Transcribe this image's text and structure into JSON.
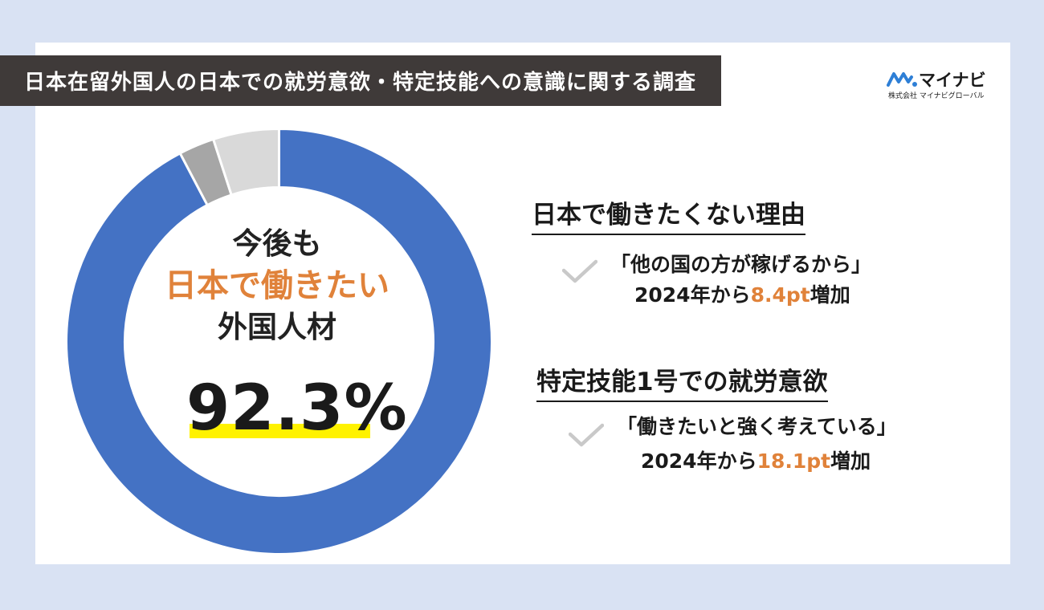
{
  "header": {
    "title": "日本在留外国人の日本での就労意欲・特定技能への意識に関する調査"
  },
  "logo": {
    "name": "マイナビ",
    "subtitle": "株式会社 マイナビグローバル",
    "mark_color": "#2e7fd6"
  },
  "center": {
    "line1": "今後も",
    "line2": "日本で働きたい",
    "line3": "外国人材",
    "percent": "92.3%"
  },
  "sections": [
    {
      "heading": "日本で働きたくない理由",
      "quote": "「他の国の方が稼げるから」",
      "stat_prefix": "2024年から",
      "stat_value": "8.4pt",
      "stat_suffix": "増加"
    },
    {
      "heading": "特定技能1号での就労意欲",
      "quote": "「働きたいと強く考えている」",
      "stat_prefix": "2024年から",
      "stat_value": "18.1pt",
      "stat_suffix": "増加"
    }
  ],
  "colors": {
    "primary": "#4472c4",
    "secondary": "#a6a6a6",
    "tertiary": "#d9d9d9",
    "accent": "#e0823a",
    "highlight": "#fff200"
  },
  "chart_data": {
    "type": "pie",
    "title": "",
    "slices": [
      {
        "value": 92.3,
        "color": "#4472c4"
      },
      {
        "value": 2.7,
        "color": "#a6a6a6"
      },
      {
        "value": 5.0,
        "color": "#d9d9d9"
      }
    ]
  }
}
